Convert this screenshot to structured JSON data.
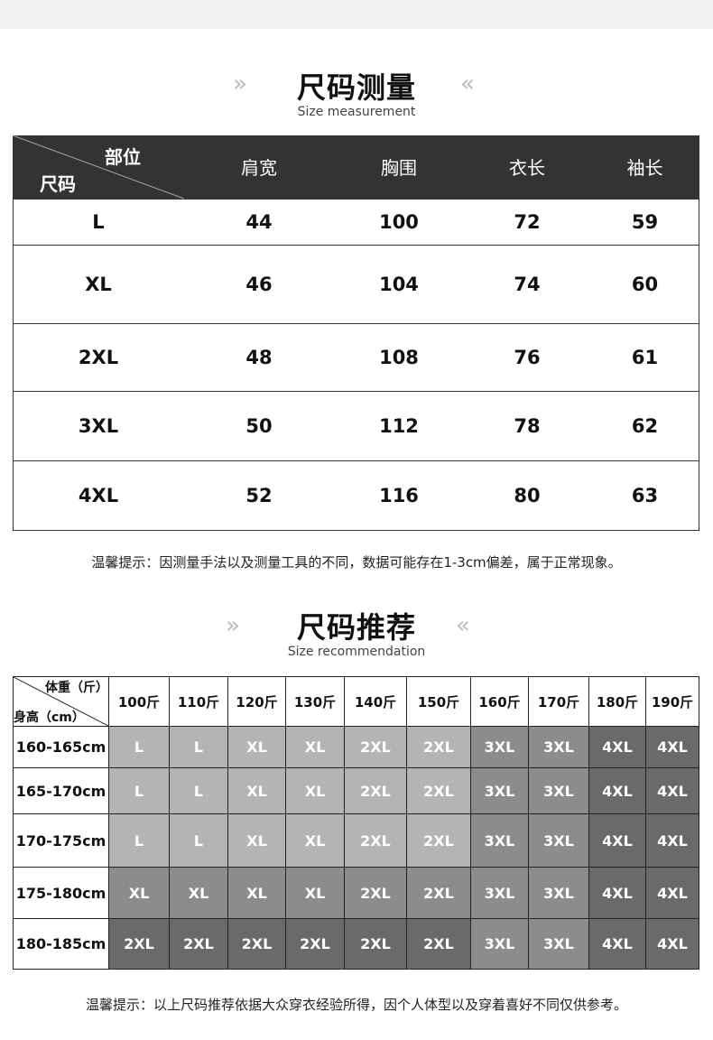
{
  "section1": {
    "title": "尺码测量",
    "subtitle": "Size measurement",
    "arrow_left": "»",
    "arrow_right": "«",
    "corner_top": "部位",
    "corner_bottom": "尺码",
    "columns": [
      "肩宽",
      "胸围",
      "衣长",
      "袖长"
    ],
    "rows": [
      {
        "size": "L",
        "values": [
          "44",
          "100",
          "72",
          "59"
        ]
      },
      {
        "size": "XL",
        "values": [
          "46",
          "104",
          "74",
          "60"
        ]
      },
      {
        "size": "2XL",
        "values": [
          "48",
          "108",
          "76",
          "61"
        ]
      },
      {
        "size": "3XL",
        "values": [
          "50",
          "112",
          "78",
          "62"
        ]
      },
      {
        "size": "4XL",
        "values": [
          "52",
          "116",
          "80",
          "63"
        ]
      }
    ],
    "note": "温馨提示：因测量手法以及测量工具的不同，数据可能存在1-3cm偏差，属于正常现象。"
  },
  "section2": {
    "title": "尺码推荐",
    "subtitle": "Size recommendation",
    "arrow_left": "»",
    "arrow_right": "«",
    "corner_top": "体重（斤）",
    "corner_bottom": "身高（cm）",
    "weights": [
      "100斤",
      "110斤",
      "120斤",
      "130斤",
      "140斤",
      "150斤",
      "160斤",
      "170斤",
      "180斤",
      "190斤"
    ],
    "rows": [
      {
        "height": "160-165cm",
        "sizes": [
          "L",
          "L",
          "XL",
          "XL",
          "2XL",
          "2XL",
          "3XL",
          "3XL",
          "4XL",
          "4XL"
        ]
      },
      {
        "height": "165-170cm",
        "sizes": [
          "L",
          "L",
          "XL",
          "XL",
          "2XL",
          "2XL",
          "3XL",
          "3XL",
          "4XL",
          "4XL"
        ]
      },
      {
        "height": "170-175cm",
        "sizes": [
          "L",
          "L",
          "XL",
          "XL",
          "2XL",
          "2XL",
          "3XL",
          "3XL",
          "4XL",
          "4XL"
        ]
      },
      {
        "height": "175-180cm",
        "sizes": [
          "XL",
          "XL",
          "XL",
          "XL",
          "2XL",
          "2XL",
          "3XL",
          "3XL",
          "4XL",
          "4XL"
        ]
      },
      {
        "height": "180-185cm",
        "sizes": [
          "2XL",
          "2XL",
          "2XL",
          "2XL",
          "2XL",
          "2XL",
          "3XL",
          "3XL",
          "4XL",
          "4XL"
        ]
      }
    ],
    "shades": {
      "light": "#b4b4b4",
      "medium": "#8c8c8c",
      "dark": "#6a6a6a"
    },
    "shade_map": [
      [
        "light",
        "light",
        "light",
        "light",
        "light",
        "light",
        "medium",
        "medium",
        "dark",
        "dark"
      ],
      [
        "light",
        "light",
        "light",
        "light",
        "light",
        "light",
        "medium",
        "medium",
        "dark",
        "dark"
      ],
      [
        "light",
        "light",
        "light",
        "light",
        "light",
        "light",
        "medium",
        "medium",
        "dark",
        "dark"
      ],
      [
        "medium",
        "medium",
        "medium",
        "medium",
        "medium",
        "medium",
        "medium",
        "medium",
        "dark",
        "dark"
      ],
      [
        "dark",
        "dark",
        "dark",
        "dark",
        "dark",
        "dark",
        "medium",
        "medium",
        "dark",
        "dark"
      ]
    ],
    "note": "温馨提示：以上尺码推荐依据大众穿衣经验所得，因个人体型以及穿着喜好不同仅供参考。"
  }
}
